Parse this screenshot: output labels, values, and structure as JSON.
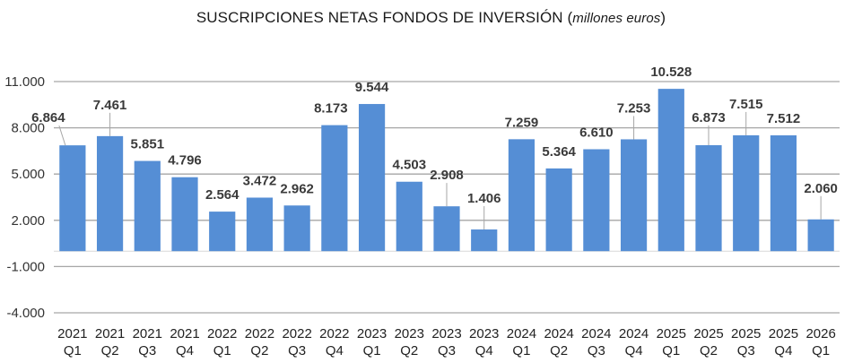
{
  "chart_data": {
    "type": "bar",
    "title": "SUSCRIPCIONES NETAS FONDOS DE INVERSIÓN",
    "subtitle": "millones euros",
    "xlabel": "",
    "ylabel": "",
    "ylim": [
      -4000,
      11000
    ],
    "yticks": [
      11000,
      8000,
      5000,
      2000,
      -1000,
      -4000
    ],
    "ytick_labels": [
      "11.000",
      "8.000",
      "5.000",
      "2.000",
      "-1.000",
      "-4.000"
    ],
    "grid": true,
    "legend": "none",
    "bar_color": "#558ed5",
    "categories": [
      {
        "year": "2021",
        "quarter": "Q1"
      },
      {
        "year": "2021",
        "quarter": "Q2"
      },
      {
        "year": "2021",
        "quarter": "Q3"
      },
      {
        "year": "2021",
        "quarter": "Q4"
      },
      {
        "year": "2022",
        "quarter": "Q1"
      },
      {
        "year": "2022",
        "quarter": "Q2"
      },
      {
        "year": "2022",
        "quarter": "Q3"
      },
      {
        "year": "2022",
        "quarter": "Q4"
      },
      {
        "year": "2023",
        "quarter": "Q1"
      },
      {
        "year": "2023",
        "quarter": "Q2"
      },
      {
        "year": "2023",
        "quarter": "Q3"
      },
      {
        "year": "2023",
        "quarter": "Q4"
      },
      {
        "year": "2024",
        "quarter": "Q1"
      },
      {
        "year": "2024",
        "quarter": "Q2"
      },
      {
        "year": "2024",
        "quarter": "Q3"
      },
      {
        "year": "2024",
        "quarter": "Q4"
      },
      {
        "year": "2025",
        "quarter": "Q1"
      },
      {
        "year": "2025",
        "quarter": "Q2"
      },
      {
        "year": "2025",
        "quarter": "Q3"
      },
      {
        "year": "2025",
        "quarter": "Q4"
      },
      {
        "year": "2026",
        "quarter": "Q1"
      }
    ],
    "values": [
      6864,
      7461,
      5851,
      4796,
      2564,
      3472,
      2962,
      8173,
      9544,
      4503,
      2908,
      1406,
      7259,
      5364,
      6610,
      7253,
      10528,
      6873,
      7515,
      7512,
      2060
    ],
    "data_labels": [
      "6.864",
      "7.461",
      "5.851",
      "4.796",
      "2.564",
      "3.472",
      "2.962",
      "8.173",
      "9.544",
      "4.503",
      "2.908",
      "1.406",
      "7.259",
      "5.364",
      "6.610",
      "7.253",
      "10.528",
      "6.873",
      "7.515",
      "7.512",
      "2.060"
    ]
  }
}
